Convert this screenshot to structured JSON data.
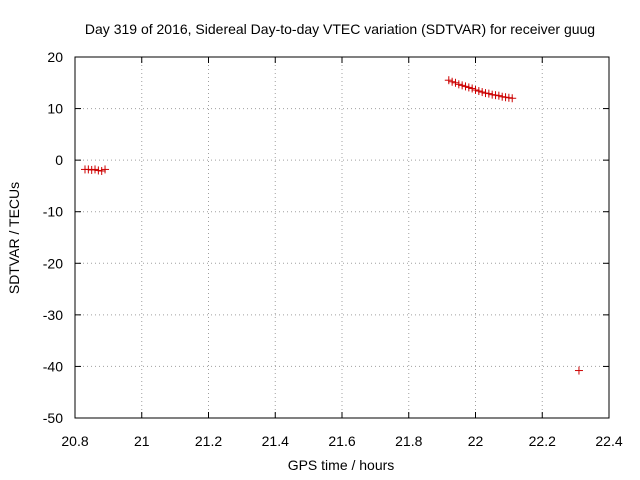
{
  "chart_data": {
    "type": "scatter",
    "title": "Day 319 of 2016, Sidereal Day-to-day VTEC variation (SDTVAR) for receiver guug",
    "xlabel": "GPS time / hours",
    "ylabel": "SDTVAR / TECUs",
    "xlim": [
      20.8,
      22.4
    ],
    "ylim": [
      -50,
      20
    ],
    "xticks": [
      20.8,
      21,
      21.2,
      21.4,
      21.6,
      21.8,
      22,
      22.2,
      22.4
    ],
    "xtick_labels": [
      "20.8",
      "21",
      "21.2",
      "21.4",
      "21.6",
      "21.8",
      "22",
      "22.2",
      "22.4"
    ],
    "yticks": [
      20,
      10,
      0,
      -10,
      -20,
      -30,
      -40,
      -50
    ],
    "ytick_labels": [
      "20",
      "10",
      "0",
      "-10",
      "-20",
      "-30",
      "-40",
      "-50"
    ],
    "grid": true,
    "marker": "+",
    "color": "#cc0000",
    "series": [
      {
        "name": "SDTVAR",
        "x": [
          20.83,
          20.84,
          20.85,
          20.86,
          20.87,
          20.88,
          20.89,
          21.92,
          21.93,
          21.94,
          21.95,
          21.96,
          21.97,
          21.98,
          21.99,
          22.0,
          22.01,
          22.02,
          22.03,
          22.04,
          22.05,
          22.06,
          22.07,
          22.08,
          22.09,
          22.1,
          22.11,
          22.31
        ],
        "y": [
          -1.8,
          -1.8,
          -1.9,
          -1.8,
          -2.0,
          -2.1,
          -1.8,
          15.5,
          15.2,
          15.0,
          14.7,
          14.5,
          14.3,
          14.1,
          13.9,
          13.6,
          13.4,
          13.2,
          13.0,
          12.9,
          12.7,
          12.6,
          12.5,
          12.3,
          12.2,
          12.1,
          12.0,
          -40.8
        ]
      }
    ]
  }
}
